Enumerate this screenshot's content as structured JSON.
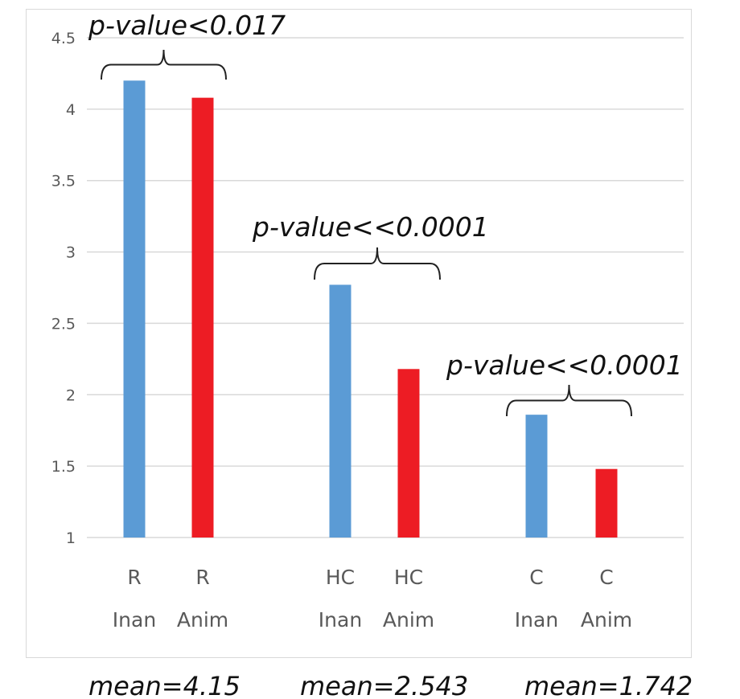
{
  "chart_data": {
    "type": "bar",
    "categories": [
      [
        "R",
        "Inan"
      ],
      [
        "R",
        "Anim"
      ],
      [
        "HC",
        "Inan"
      ],
      [
        "HC",
        "Anim"
      ],
      [
        "C",
        "Inan"
      ],
      [
        "C",
        "Anim"
      ]
    ],
    "values": [
      4.2,
      4.08,
      2.77,
      2.18,
      1.86,
      1.48
    ],
    "colors": [
      "#5b9bd5",
      "#ed1c24",
      "#5b9bd5",
      "#ed1c24",
      "#5b9bd5",
      "#ed1c24"
    ],
    "ylim": [
      1,
      4.5
    ],
    "yticks": [
      "1",
      "1.5",
      "2",
      "2.5",
      "3",
      "3.5",
      "4",
      "4.5"
    ],
    "grid": true,
    "groups": [
      {
        "annotation": "p-value<0.017",
        "mean": "mean=4.15"
      },
      {
        "annotation": "p-value<<0.0001",
        "mean": "mean=2.543"
      },
      {
        "annotation": "p-value<<0.0001",
        "mean": "mean=1.742"
      }
    ]
  }
}
